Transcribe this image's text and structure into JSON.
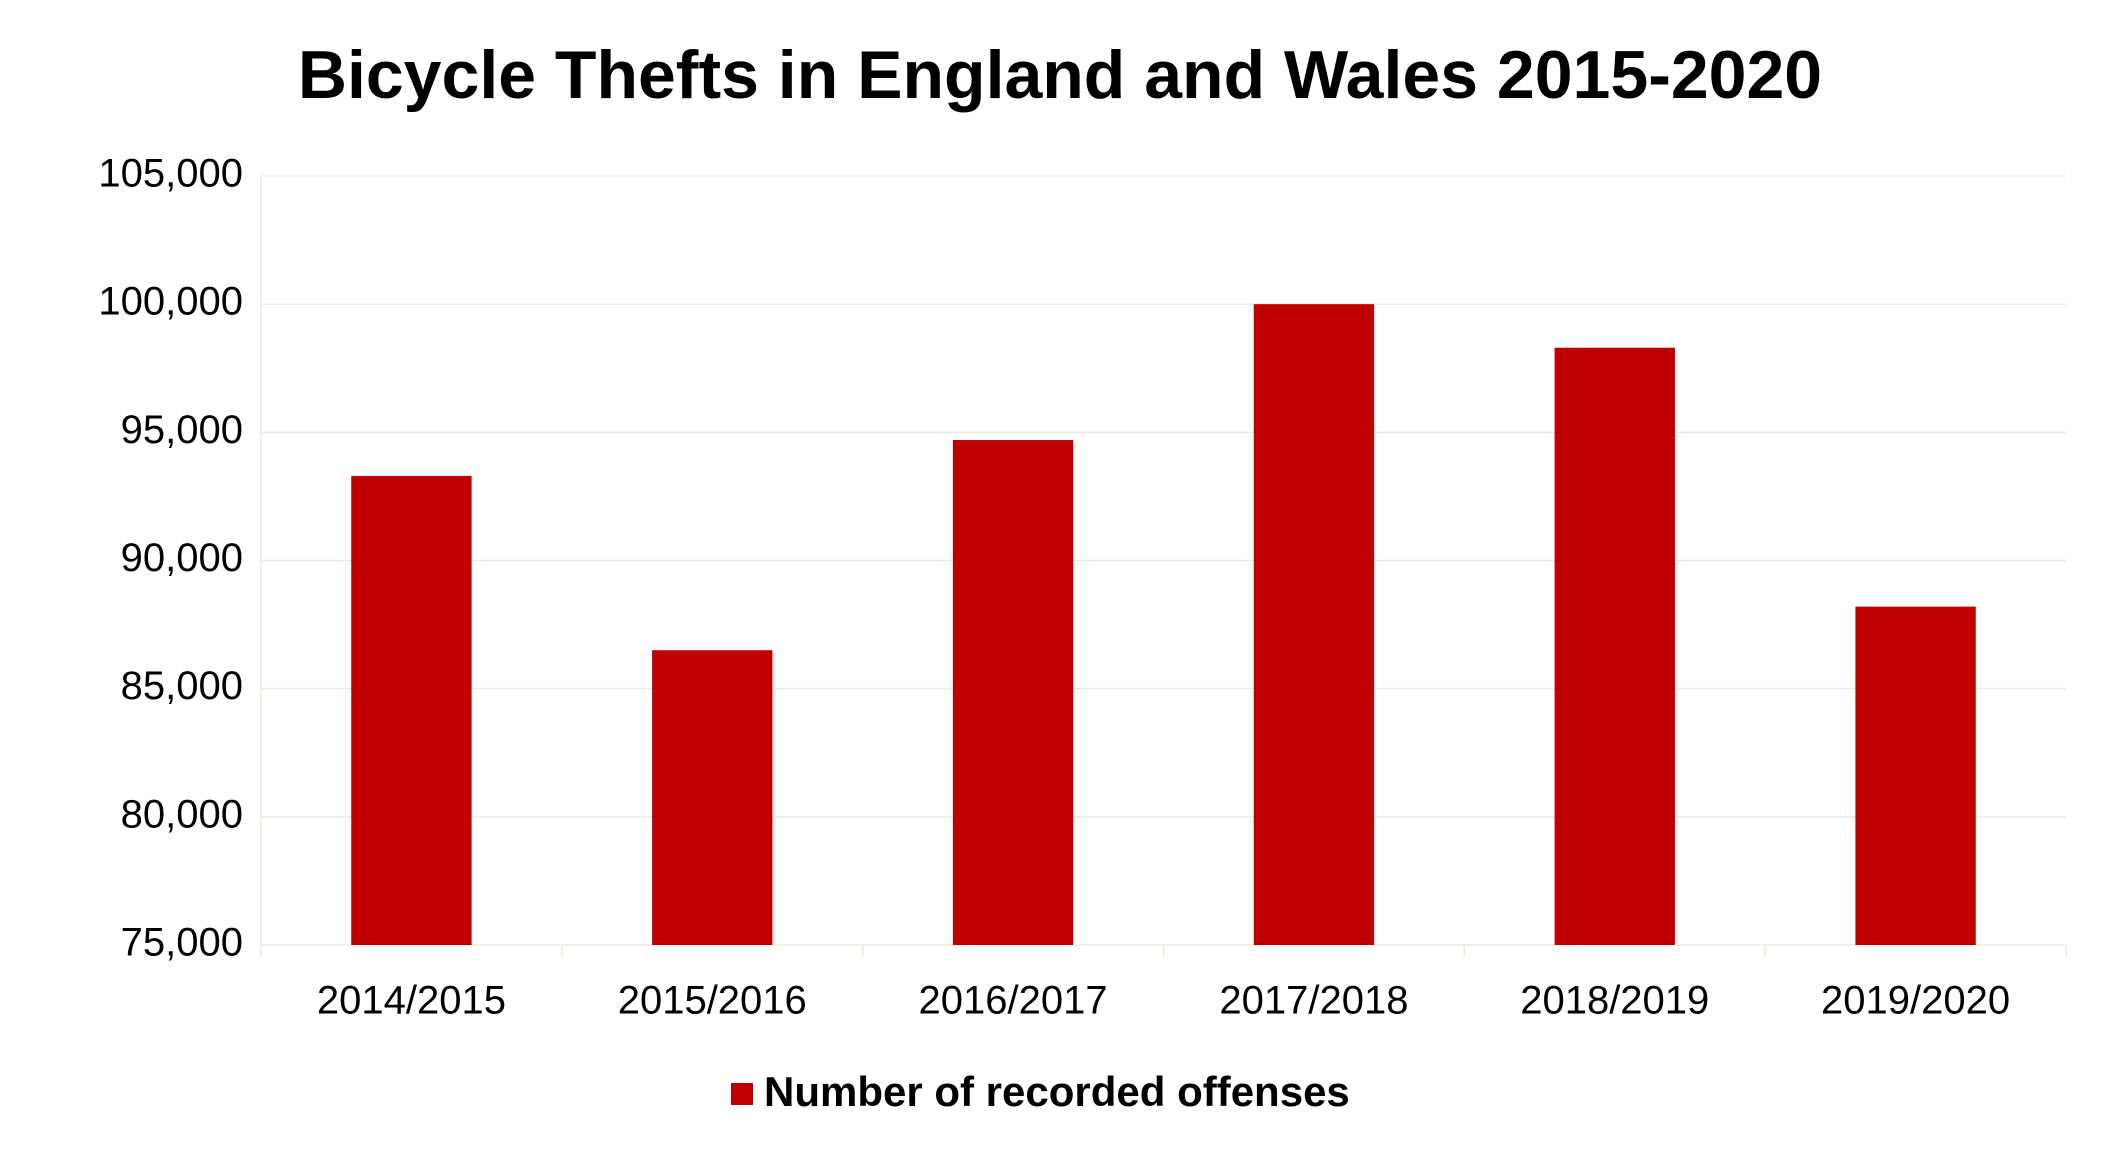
{
  "chart_data": {
    "type": "bar",
    "title": "Bicycle Thefts in England and Wales 2015-2020",
    "categories": [
      "2014/2015",
      "2015/2016",
      "2016/2017",
      "2017/2018",
      "2018/2019",
      "2019/2020"
    ],
    "series": [
      {
        "name": "Number of recorded offenses",
        "color": "#c00000",
        "values": [
          93300,
          86500,
          94700,
          100000,
          98300,
          88200
        ]
      }
    ],
    "ylim": [
      75000,
      105000
    ],
    "yticks": [
      {
        "value": 75000,
        "label": "75,000"
      },
      {
        "value": 80000,
        "label": "80,000"
      },
      {
        "value": 85000,
        "label": "85,000"
      },
      {
        "value": 90000,
        "label": "90,000"
      },
      {
        "value": 95000,
        "label": "95,000"
      },
      {
        "value": 100000,
        "label": "100,000"
      },
      {
        "value": 105000,
        "label": "105,000"
      }
    ],
    "grid": true,
    "legend": "bottom"
  }
}
